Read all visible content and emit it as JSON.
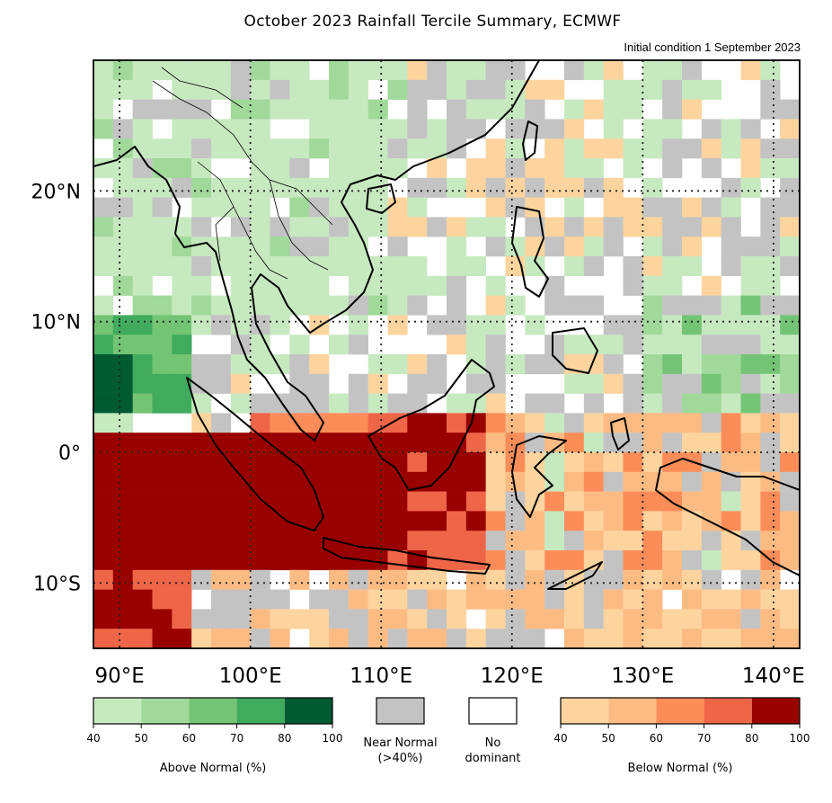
{
  "title": "October 2023 Rainfall Tercile Summary, ECMWF",
  "subtitle": "Initial condition 1 September 2023",
  "map": {
    "lon_range": [
      88,
      142
    ],
    "lat_range": [
      -15,
      30
    ],
    "lat_ticks": [
      {
        "value": 20,
        "label": "20°N"
      },
      {
        "value": 10,
        "label": "10°N"
      },
      {
        "value": 0,
        "label": "0°"
      },
      {
        "value": -10,
        "label": "10°S"
      }
    ],
    "lon_ticks": [
      {
        "value": 90,
        "label": "90°E"
      },
      {
        "value": 100,
        "label": "100°E"
      },
      {
        "value": 110,
        "label": "110°E"
      },
      {
        "value": 120,
        "label": "120°E"
      },
      {
        "value": 130,
        "label": "130°E"
      },
      {
        "value": 140,
        "label": "140°E"
      }
    ],
    "gridlines": "dotted"
  },
  "legend": {
    "above": {
      "title": "Above Normal (%)",
      "ticks": [
        "40",
        "50",
        "60",
        "70",
        "80",
        "100"
      ],
      "colors": [
        "#c7e9c0",
        "#a1d99b",
        "#74c476",
        "#41ab5d",
        "#005a32"
      ]
    },
    "near": {
      "label_line1": "Near Normal",
      "label_line2": "(>40%)",
      "color": "#c3c3c3"
    },
    "none": {
      "label_line1": "No",
      "label_line2": "dominant",
      "color": "#ffffff"
    },
    "below": {
      "title": "Below Normal (%)",
      "ticks": [
        "40",
        "50",
        "60",
        "70",
        "80",
        "100"
      ],
      "colors": [
        "#fdd49e",
        "#fdbb84",
        "#fc8d59",
        "#ef6548",
        "#990000"
      ]
    }
  }
}
